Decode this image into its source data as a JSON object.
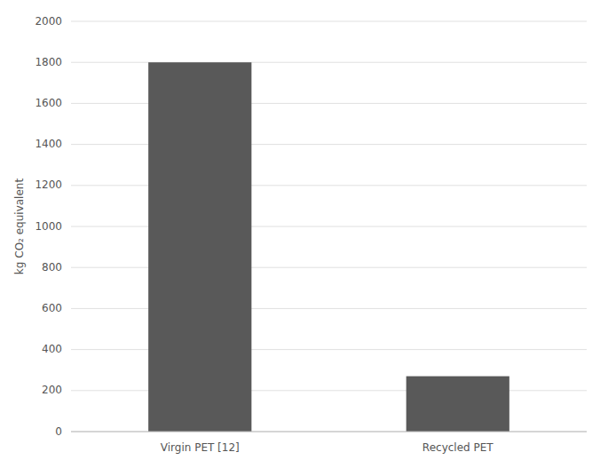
{
  "chart_data": {
    "type": "bar",
    "ylabel": "kg CO₂ equivalent",
    "categories": [
      "Virgin PET [12]",
      "Recycled PET"
    ],
    "values": [
      1800,
      270
    ],
    "color": "#595959",
    "ylim": [
      0,
      2000
    ],
    "yticks": [
      0,
      200,
      400,
      600,
      800,
      1000,
      1200,
      1400,
      1600,
      1800,
      2000
    ],
    "grid": true
  }
}
